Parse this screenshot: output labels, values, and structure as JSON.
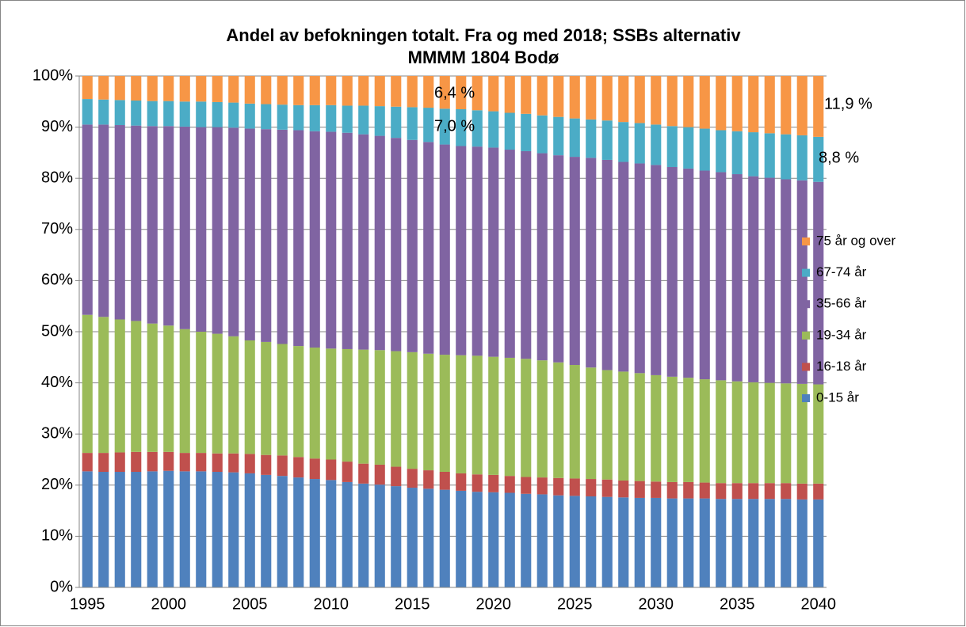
{
  "chart_data": {
    "type": "stacked_bar",
    "title": [
      "Andel av befokningen totalt. Fra og med 2018; SSBs alternativ",
      "MMMM 1804 Bodø"
    ],
    "categories": [
      "1995",
      null,
      null,
      null,
      null,
      "2000",
      null,
      null,
      null,
      null,
      "2005",
      null,
      null,
      null,
      null,
      "2010",
      null,
      null,
      null,
      null,
      "2015",
      null,
      null,
      null,
      null,
      "2020",
      null,
      null,
      null,
      null,
      "2025",
      null,
      null,
      null,
      null,
      "2030",
      null,
      null,
      null,
      null,
      "2035",
      null,
      null,
      null,
      null,
      "2040"
    ],
    "ylim": [
      0,
      100
    ],
    "yticks": [
      {
        "value": 0,
        "label": "0%"
      },
      {
        "value": 10,
        "label": "10%"
      },
      {
        "value": 20,
        "label": "20%"
      },
      {
        "value": 30,
        "label": "30%"
      },
      {
        "value": 40,
        "label": "40%"
      },
      {
        "value": 50,
        "label": "50%"
      },
      {
        "value": 60,
        "label": "60%"
      },
      {
        "value": 70,
        "label": "70%"
      },
      {
        "value": 80,
        "label": "80%"
      },
      {
        "value": 90,
        "label": "90%"
      },
      {
        "value": 100,
        "label": "100%"
      }
    ],
    "grid": true,
    "legend": "right",
    "series": [
      {
        "name": "0-15 år",
        "color": "#4f81bd",
        "values": [
          22.7,
          22.6,
          22.6,
          22.6,
          22.7,
          22.8,
          22.7,
          22.7,
          22.6,
          22.5,
          22.3,
          22.0,
          21.8,
          21.5,
          21.2,
          21.0,
          20.6,
          20.3,
          20.1,
          19.8,
          19.5,
          19.3,
          19.1,
          18.9,
          18.7,
          18.6,
          18.5,
          18.3,
          18.2,
          18.0,
          17.9,
          17.8,
          17.7,
          17.6,
          17.5,
          17.5,
          17.4,
          17.4,
          17.4,
          17.3,
          17.3,
          17.3,
          17.3,
          17.3,
          17.2,
          17.2
        ]
      },
      {
        "name": "16-18 år",
        "color": "#c0504d",
        "values": [
          3.6,
          3.7,
          3.8,
          3.9,
          3.8,
          3.7,
          3.6,
          3.6,
          3.6,
          3.7,
          3.8,
          3.9,
          4.0,
          4.0,
          4.0,
          4.0,
          4.0,
          3.9,
          3.9,
          3.8,
          3.7,
          3.6,
          3.5,
          3.4,
          3.4,
          3.4,
          3.3,
          3.3,
          3.3,
          3.4,
          3.4,
          3.4,
          3.4,
          3.3,
          3.3,
          3.2,
          3.2,
          3.2,
          3.1,
          3.1,
          3.1,
          3.1,
          3.1,
          3.1,
          3.1,
          3.1
        ]
      },
      {
        "name": "19-34 år",
        "color": "#9bbb59",
        "values": [
          27.0,
          26.6,
          26.0,
          25.6,
          25.1,
          24.7,
          24.2,
          23.7,
          23.4,
          22.9,
          22.2,
          22.1,
          21.8,
          21.7,
          21.7,
          21.7,
          22.0,
          22.3,
          22.4,
          22.6,
          22.8,
          22.8,
          22.9,
          23.1,
          23.2,
          23.1,
          23.1,
          23.1,
          22.9,
          22.6,
          22.2,
          21.8,
          21.4,
          21.3,
          21.1,
          20.8,
          20.6,
          20.4,
          20.2,
          20.1,
          19.9,
          19.7,
          19.6,
          19.5,
          19.5,
          19.4
        ]
      },
      {
        "name": "35-66 år",
        "color": "#8064a2",
        "values": [
          37.2,
          37.6,
          38.0,
          38.2,
          38.6,
          39.0,
          39.6,
          40.0,
          40.4,
          40.8,
          41.4,
          41.6,
          41.9,
          42.2,
          42.3,
          42.4,
          42.3,
          42.1,
          41.9,
          41.7,
          41.5,
          41.4,
          41.1,
          40.9,
          40.9,
          40.9,
          40.7,
          40.6,
          40.5,
          40.5,
          40.7,
          41.0,
          41.1,
          41.0,
          41.0,
          41.1,
          41.0,
          40.9,
          40.8,
          40.7,
          40.5,
          40.3,
          40.1,
          39.9,
          39.8,
          39.6
        ]
      },
      {
        "name": "67-74 år",
        "color": "#4bacc6",
        "values": [
          5.0,
          4.9,
          4.9,
          4.9,
          4.9,
          4.9,
          4.9,
          5.0,
          4.9,
          4.9,
          4.9,
          4.9,
          4.9,
          4.9,
          5.1,
          5.2,
          5.3,
          5.6,
          5.8,
          6.1,
          6.4,
          6.7,
          7.0,
          7.2,
          7.1,
          7.1,
          7.2,
          7.3,
          7.4,
          7.5,
          7.5,
          7.5,
          7.7,
          7.8,
          7.9,
          7.9,
          8.0,
          8.1,
          8.2,
          8.2,
          8.4,
          8.6,
          8.7,
          8.8,
          8.8,
          8.8
        ]
      },
      {
        "name": "75 år og over",
        "color": "#f79646",
        "values": [
          4.5,
          4.6,
          4.7,
          4.8,
          4.9,
          4.9,
          5.0,
          5.0,
          5.1,
          5.2,
          5.4,
          5.5,
          5.6,
          5.7,
          5.7,
          5.7,
          5.8,
          5.8,
          5.9,
          6.0,
          6.1,
          6.2,
          6.4,
          6.5,
          6.7,
          6.9,
          7.2,
          7.4,
          7.7,
          8.0,
          8.3,
          8.5,
          8.7,
          9.0,
          9.2,
          9.5,
          9.8,
          10.0,
          10.3,
          10.6,
          10.8,
          11.0,
          11.2,
          11.4,
          11.6,
          11.9
        ]
      }
    ],
    "annotations": [
      "6,4 %",
      "7,0 %",
      "11,9 %",
      "8,8 %"
    ]
  }
}
